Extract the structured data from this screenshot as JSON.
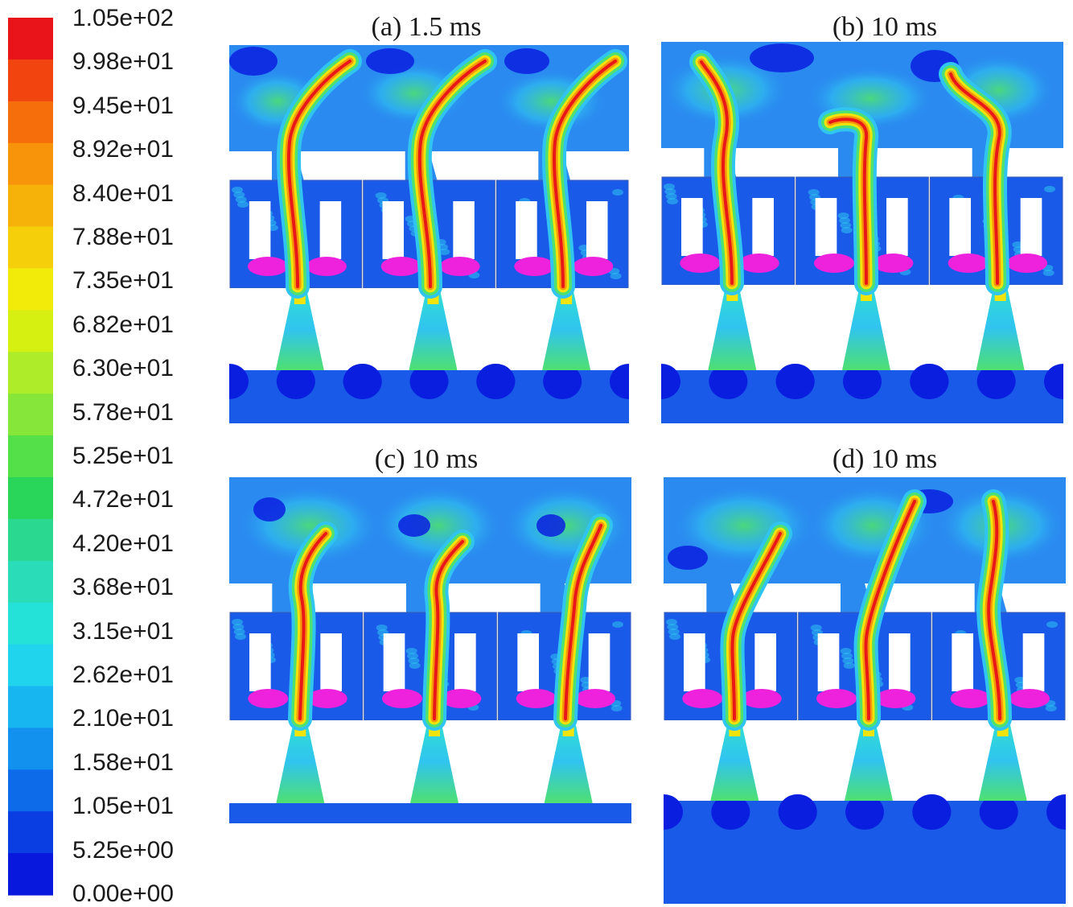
{
  "colorbar": {
    "labels": [
      "1.05e+02",
      "9.98e+01",
      "9.45e+01",
      "8.92e+01",
      "8.40e+01",
      "7.88e+01",
      "7.35e+01",
      "6.82e+01",
      "6.30e+01",
      "5.78e+01",
      "5.25e+01",
      "4.72e+01",
      "4.20e+01",
      "3.68e+01",
      "3.15e+01",
      "2.62e+01",
      "2.10e+01",
      "1.58e+01",
      "1.05e+01",
      "5.25e+00",
      "0.00e+00"
    ],
    "colors": [
      "#e8141a",
      "#f2440f",
      "#f66e0c",
      "#f7940a",
      "#f7b20a",
      "#f5cf0a",
      "#f2eb0a",
      "#d6f012",
      "#aeec2a",
      "#86e63a",
      "#54e048",
      "#2ad65a",
      "#2ad890",
      "#2adcb8",
      "#24e2d8",
      "#20d4ee",
      "#18b6f0",
      "#1292ee",
      "#0d6ae8",
      "#0a3ee2",
      "#0818dc"
    ]
  },
  "panels": [
    {
      "id": "a",
      "title": "(a) 1.5 ms"
    },
    {
      "id": "b",
      "title": "(b) 10 ms"
    },
    {
      "id": "c",
      "title": "(c) 10 ms"
    },
    {
      "id": "d",
      "title": "(d) 10 ms"
    }
  ]
}
